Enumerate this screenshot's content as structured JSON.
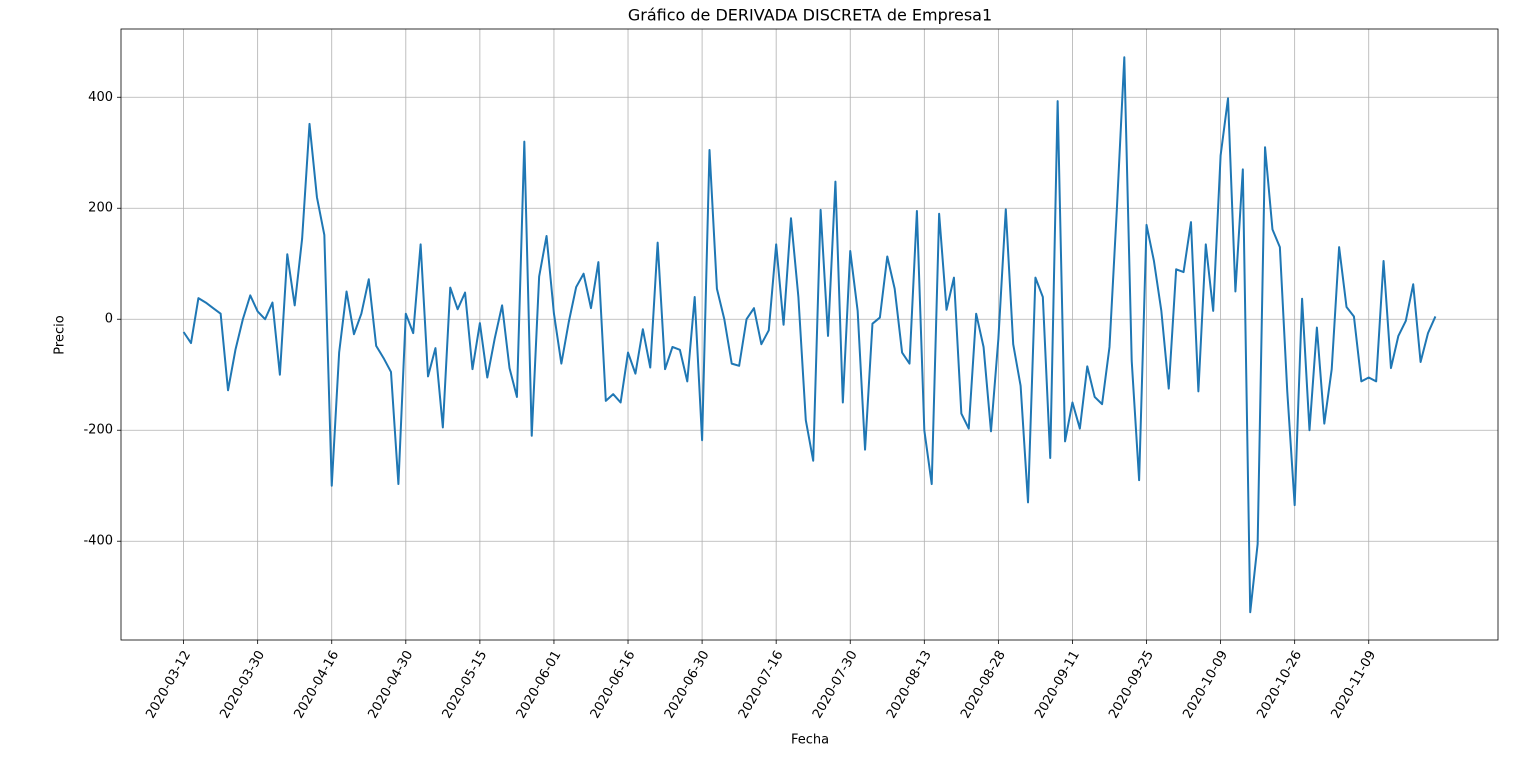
{
  "chart_data": {
    "type": "line",
    "title": "Gráfico de DERIVADA DISCRETA de Empresa1",
    "x_label": "Fecha",
    "y_label": "Precio",
    "color": "#1f77b4",
    "grid": true,
    "categories": [
      "2020-03-12",
      null,
      null,
      null,
      null,
      null,
      null,
      null,
      null,
      null,
      "2020-03-30",
      null,
      null,
      null,
      null,
      null,
      null,
      null,
      null,
      null,
      "2020-04-16",
      null,
      null,
      null,
      null,
      null,
      null,
      null,
      null,
      null,
      "2020-04-30",
      null,
      null,
      null,
      null,
      null,
      null,
      null,
      null,
      null,
      "2020-05-15",
      null,
      null,
      null,
      null,
      null,
      null,
      null,
      null,
      null,
      "2020-06-01",
      null,
      null,
      null,
      null,
      null,
      null,
      null,
      null,
      null,
      "2020-06-16",
      null,
      null,
      null,
      null,
      null,
      null,
      null,
      null,
      null,
      "2020-06-30",
      null,
      null,
      null,
      null,
      null,
      null,
      null,
      null,
      null,
      "2020-07-16",
      null,
      null,
      null,
      null,
      null,
      null,
      null,
      null,
      null,
      "2020-07-30",
      null,
      null,
      null,
      null,
      null,
      null,
      null,
      null,
      null,
      "2020-08-13",
      null,
      null,
      null,
      null,
      null,
      null,
      null,
      null,
      null,
      "2020-08-28",
      null,
      null,
      null,
      null,
      null,
      null,
      null,
      null,
      null,
      "2020-09-11",
      null,
      null,
      null,
      null,
      null,
      null,
      null,
      null,
      null,
      "2020-09-25",
      null,
      null,
      null,
      null,
      null,
      null,
      null,
      null,
      null,
      "2020-10-09",
      null,
      null,
      null,
      null,
      null,
      null,
      null,
      null,
      null,
      "2020-10-26",
      null,
      null,
      null,
      null,
      null,
      null,
      null,
      null,
      null,
      "2020-11-09",
      null,
      null,
      null,
      null,
      null,
      null,
      null,
      null,
      null
    ],
    "values": [
      -23,
      -43,
      38,
      30,
      20,
      10,
      -128,
      -55,
      0,
      43,
      14,
      0,
      30,
      -100,
      117,
      25,
      145,
      352,
      220,
      152,
      -300,
      -60,
      50,
      -27,
      10,
      72,
      -48,
      -70,
      -95,
      -297,
      10,
      -25,
      135,
      -103,
      -52,
      -195,
      57,
      18,
      48,
      -90,
      -7,
      -105,
      -35,
      25,
      -88,
      -140,
      320,
      -210,
      77,
      150,
      10,
      -80,
      -5,
      58,
      82,
      20,
      103,
      -147,
      -135,
      -150,
      -60,
      -98,
      -18,
      -87,
      138,
      -90,
      -50,
      -55,
      -112,
      40,
      -218,
      305,
      55,
      0,
      -80,
      -84,
      0,
      20,
      -45,
      -20,
      135,
      -10,
      182,
      40,
      -182,
      -255,
      197,
      -30,
      248,
      -150,
      123,
      15,
      -235,
      -8,
      3,
      113,
      55,
      -60,
      -80,
      195,
      -200,
      -297,
      190,
      17,
      75,
      -170,
      -197,
      10,
      -50,
      -202,
      -35,
      198,
      -45,
      -120,
      -330,
      75,
      40,
      -250,
      393,
      -220,
      -150,
      -197,
      -85,
      -140,
      -153,
      -50,
      200,
      472,
      -75,
      -290,
      170,
      105,
      15,
      -125,
      90,
      85,
      175,
      -130,
      135,
      15,
      295,
      398,
      50,
      270,
      -528,
      -405,
      310,
      162,
      130,
      -130,
      -335,
      37,
      -200,
      -15,
      -188,
      -90,
      130,
      22,
      5,
      -112,
      -105,
      -112,
      105,
      -88,
      -30,
      -3,
      63,
      -77,
      -25,
      5
    ],
    "ylim": [
      -578,
      523
    ],
    "yticks": [
      -400,
      -200,
      0,
      200,
      400
    ]
  }
}
